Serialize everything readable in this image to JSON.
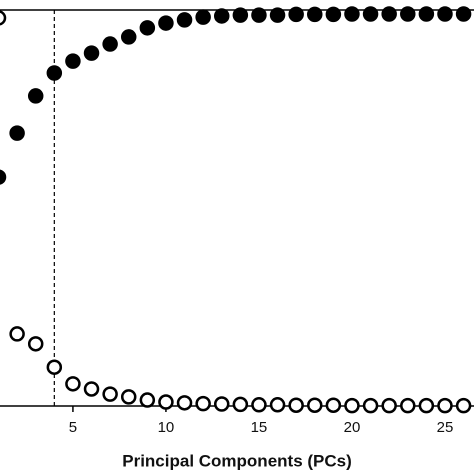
{
  "chart_data": {
    "type": "scatter",
    "x_label": "Principal Components (PCs)",
    "x": [
      1,
      2,
      3,
      4,
      5,
      6,
      7,
      8,
      9,
      10,
      11,
      12,
      13,
      14,
      15,
      16,
      17,
      18,
      19,
      20,
      21,
      22,
      23,
      24,
      25,
      26
    ],
    "series": [
      {
        "color": "#000000",
        "filled": true,
        "values": [
          57.8,
          68.9,
          78.3,
          84.1,
          87.1,
          89.1,
          91.4,
          93.2,
          95.5,
          96.7,
          97.5,
          98.2,
          98.5,
          98.7,
          98.7,
          98.7,
          98.9,
          98.9,
          98.9,
          99,
          99,
          99,
          99,
          99,
          99,
          99
        ]
      },
      {
        "color": "#000000",
        "filled": false,
        "values": [
          98.0,
          18.2,
          15.7,
          9.8,
          5.6,
          4.3,
          3.0,
          2.3,
          1.5,
          1.0,
          0.8,
          0.6,
          0.5,
          0.4,
          0.3,
          0.3,
          0.2,
          0.2,
          0.2,
          0.1,
          0.1,
          0.1,
          0.1,
          0.1,
          0.1,
          0.1
        ]
      }
    ],
    "xlim": [
      1.08,
      26.56
    ],
    "ylim": [
      0,
      100
    ],
    "xticks": [
      5,
      10,
      15,
      20,
      25
    ],
    "cutoff_x": 4
  }
}
